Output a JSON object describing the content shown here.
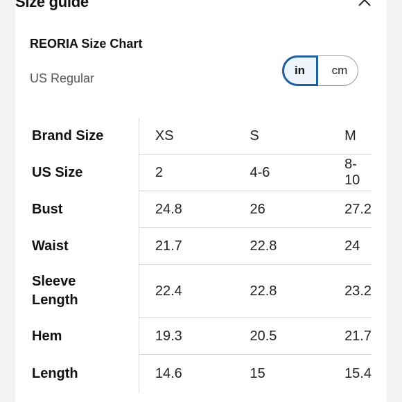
{
  "header": {
    "title": "Size guide"
  },
  "chart": {
    "title": "REORIA Size Chart",
    "region": "US Regular",
    "units": {
      "inch_label": "in",
      "cm_label": "cm",
      "selected": "in"
    }
  },
  "table": {
    "rows": [
      {
        "label": "Brand Size",
        "values": [
          "XS",
          "S",
          "M"
        ]
      },
      {
        "label": "US Size",
        "values": [
          "2",
          "4-6",
          "8-10"
        ]
      },
      {
        "label": "Bust",
        "values": [
          "24.8",
          "26",
          "27.2"
        ]
      },
      {
        "label": "Waist",
        "values": [
          "21.7",
          "22.8",
          "24"
        ]
      },
      {
        "label": "Sleeve Length",
        "values": [
          "22.4",
          "22.8",
          "23.2"
        ]
      },
      {
        "label": "Hem",
        "values": [
          "19.3",
          "20.5",
          "21.7"
        ]
      },
      {
        "label": "Length",
        "values": [
          "14.6",
          "15",
          "15.4"
        ]
      }
    ]
  }
}
